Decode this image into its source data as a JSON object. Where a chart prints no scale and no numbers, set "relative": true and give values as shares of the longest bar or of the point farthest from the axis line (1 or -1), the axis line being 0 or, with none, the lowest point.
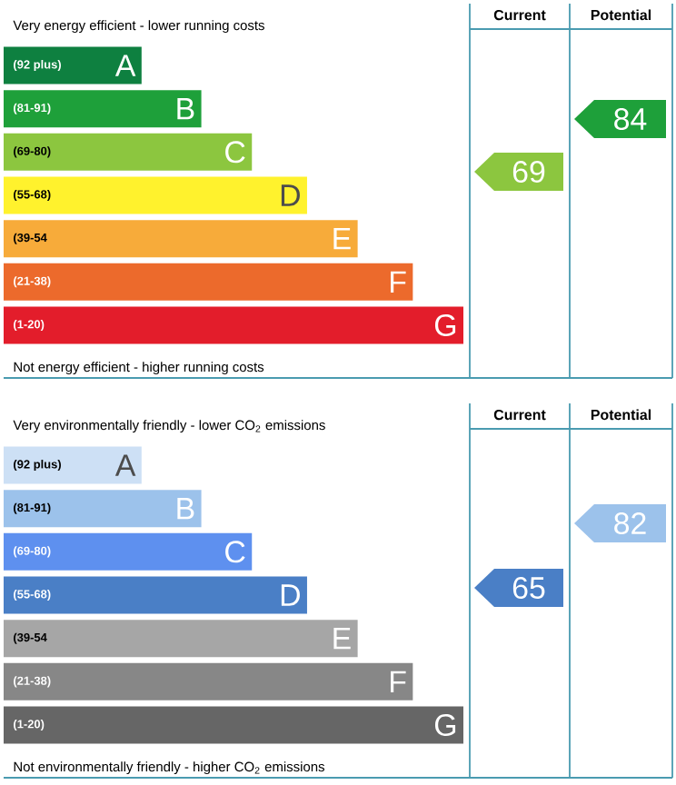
{
  "chart_data": [
    {
      "type": "bar",
      "orientation": "horizontal",
      "relative": true,
      "title": "Very energy efficient - lower running costs",
      "categories": [
        "A",
        "B",
        "C",
        "D",
        "E",
        "F",
        "G"
      ],
      "values": [
        0.3,
        0.43,
        0.54,
        0.66,
        0.77,
        0.89,
        1
      ],
      "colors": [
        "#0e8040",
        "#1ea03a",
        "#8cc63f",
        "#fff22d",
        "#f7ab3a",
        "#ec6a2c",
        "#e31d2b"
      ],
      "annotations": [
        "Not energy efficient - higher running costs",
        "Current",
        "Potential",
        "(92 plus)",
        "(81-91)",
        "(69-80)",
        "(55-68)",
        "(39-54",
        "(21-38)",
        "(1-20)",
        "69",
        "84"
      ]
    },
    {
      "type": "bar",
      "orientation": "horizontal",
      "relative": true,
      "title": "Very environmentally friendly - lower CO$_{2}$ emissions",
      "categories": [
        "A",
        "B",
        "C",
        "D",
        "E",
        "F",
        "G"
      ],
      "values": [
        0.3,
        0.43,
        0.54,
        0.66,
        0.77,
        0.89,
        1
      ],
      "colors": [
        "#cde0f5",
        "#9cc2eb",
        "#5e90ef",
        "#4a7fc6",
        "#a6a6a6",
        "#878787",
        "#666666"
      ],
      "annotations": [
        "Not environmentally friendly - higher CO$_{2}$ emissions",
        "Current",
        "Potential",
        "(92 plus)",
        "(81-91)",
        "(69-80)",
        "(55-68)",
        "(39-54",
        "(21-38)",
        "(1-20)",
        "65",
        "82"
      ]
    }
  ]
}
